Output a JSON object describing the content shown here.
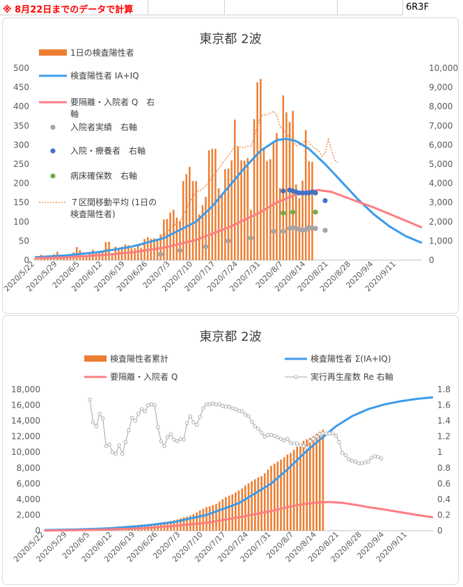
{
  "header": {
    "note": "※ 8月22日までのデータで計算",
    "code": "6R3F"
  },
  "colors": {
    "bar": "#ED7D31",
    "blue": "#3C9BEA",
    "pink": "#FF7C80",
    "gray": "#A5A5A5",
    "navy": "#4472C4",
    "green": "#70AD47",
    "dotted": "#ED7D31"
  },
  "chart_data": [
    {
      "type": "bar",
      "title": "東京都 2波",
      "legend": [
        {
          "label": "1日の検査陽性者",
          "kind": "bar",
          "color": "#ED7D31"
        },
        {
          "label": "検査陽性者 IA+IQ",
          "kind": "line",
          "color": "#3C9BEA"
        },
        {
          "label": "要隔離・入院者 Q　右",
          "label2": "軸",
          "kind": "line",
          "color": "#FF7C80"
        },
        {
          "label": "入院者実績　右軸",
          "kind": "marker",
          "color": "#A5A5A5"
        },
        {
          "label": "入院・療養者　右軸",
          "kind": "marker",
          "color": "#4472C4"
        },
        {
          "label": "病床確保数　右軸",
          "kind": "marker",
          "color": "#70AD47"
        },
        {
          "label": "７区間移動平均 (1日の",
          "label2": "検査陽性者)",
          "kind": "dotted",
          "color": "#ED7D31"
        }
      ],
      "x_ticks": [
        "2020/5/22",
        "2020/5/29",
        "2020/6/5",
        "2020/6/12",
        "2020/6/19",
        "2020/6/26",
        "2020/7/3",
        "2020/7/10",
        "2020/7/17",
        "2020/7/24",
        "2020/7/31",
        "2020/8/7",
        "2020/8/14",
        "2020/8/21",
        "2020/8/28",
        "2020/9/4",
        "2020/9/11"
      ],
      "x_range_days": [
        0,
        120
      ],
      "left_axis": {
        "ticks": [
          0,
          50,
          100,
          150,
          200,
          250,
          300,
          350,
          400,
          450,
          500
        ],
        "ylim": [
          0,
          500
        ]
      },
      "right_axis": {
        "ticks": [
          "0",
          "1,000",
          "2,000",
          "3,000",
          "4,000",
          "5,000",
          "6,000",
          "7,000",
          "8,000",
          "9,000",
          "10,000"
        ],
        "ylim": [
          0,
          10000
        ]
      },
      "daily_positive_start": "2020/5/22",
      "daily_positive": [
        3,
        2,
        14,
        8,
        10,
        11,
        15,
        22,
        11,
        12,
        11,
        16,
        20,
        34,
        26,
        13,
        12,
        18,
        27,
        22,
        24,
        25,
        47,
        48,
        16,
        35,
        29,
        35,
        41,
        39,
        31,
        31,
        39,
        32,
        55,
        60,
        55,
        57,
        54,
        67,
        106,
        107,
        124,
        131,
        111,
        102,
        206,
        224,
        243,
        206,
        206,
        119,
        143,
        165,
        286,
        290,
        290,
        187,
        168,
        237,
        238,
        260,
        366,
        295,
        260,
        259,
        266,
        131,
        367,
        463,
        472,
        292,
        258,
        263,
        309,
        331,
        188,
        429,
        385,
        360,
        389,
        197,
        161,
        207,
        339,
        258,
        256
      ],
      "moving_avg_7": [
        5,
        6,
        7,
        8,
        9,
        10,
        11,
        12,
        13,
        13,
        14,
        15,
        16,
        17,
        19,
        19,
        18,
        19,
        20,
        21,
        22,
        24,
        26,
        28,
        27,
        29,
        30,
        31,
        33,
        35,
        35,
        37,
        38,
        38,
        42,
        46,
        48,
        51,
        54,
        57,
        65,
        72,
        82,
        90,
        96,
        101,
        116,
        133,
        151,
        165,
        178,
        180,
        185,
        194,
        205,
        216,
        226,
        238,
        250,
        262,
        272,
        283,
        297,
        296,
        294,
        293,
        297,
        296,
        320,
        349,
        374,
        379,
        378,
        383,
        388,
        376,
        350,
        339,
        328,
        320,
        314,
        298,
        300,
        305,
        311,
        307,
        296,
        290,
        285,
        270,
        280,
        315,
        285,
        260,
        255
      ],
      "blue_model": [
        {
          "x": 0,
          "y": 150
        },
        {
          "x": 10,
          "y": 250
        },
        {
          "x": 20,
          "y": 420
        },
        {
          "x": 30,
          "y": 700
        },
        {
          "x": 40,
          "y": 1150
        },
        {
          "x": 50,
          "y": 2000
        },
        {
          "x": 55,
          "y": 2800
        },
        {
          "x": 60,
          "y": 3800
        },
        {
          "x": 65,
          "y": 4800
        },
        {
          "x": 70,
          "y": 5700
        },
        {
          "x": 75,
          "y": 6250
        },
        {
          "x": 78,
          "y": 6320
        },
        {
          "x": 81,
          "y": 6200
        },
        {
          "x": 85,
          "y": 5800
        },
        {
          "x": 90,
          "y": 5000
        },
        {
          "x": 95,
          "y": 4100
        },
        {
          "x": 100,
          "y": 3200
        },
        {
          "x": 105,
          "y": 2400
        },
        {
          "x": 110,
          "y": 1750
        },
        {
          "x": 115,
          "y": 1250
        },
        {
          "x": 120,
          "y": 900
        }
      ],
      "pink_model": [
        {
          "x": 0,
          "y": 100
        },
        {
          "x": 10,
          "y": 150
        },
        {
          "x": 20,
          "y": 250
        },
        {
          "x": 30,
          "y": 400
        },
        {
          "x": 40,
          "y": 650
        },
        {
          "x": 50,
          "y": 1050
        },
        {
          "x": 60,
          "y": 1700
        },
        {
          "x": 70,
          "y": 2500
        },
        {
          "x": 75,
          "y": 3000
        },
        {
          "x": 80,
          "y": 3350
        },
        {
          "x": 85,
          "y": 3600
        },
        {
          "x": 88,
          "y": 3650
        },
        {
          "x": 92,
          "y": 3550
        },
        {
          "x": 96,
          "y": 3300
        },
        {
          "x": 100,
          "y": 3050
        },
        {
          "x": 105,
          "y": 2750
        },
        {
          "x": 110,
          "y": 2400
        },
        {
          "x": 115,
          "y": 2050
        },
        {
          "x": 120,
          "y": 1700
        }
      ],
      "inpatients_actual": [
        {
          "x": 39,
          "y": 300
        },
        {
          "x": 45,
          "y": 500
        },
        {
          "x": 53,
          "y": 700
        },
        {
          "x": 60,
          "y": 1000
        },
        {
          "x": 67,
          "y": 1150
        },
        {
          "x": 74,
          "y": 1500
        },
        {
          "x": 77,
          "y": 1500
        },
        {
          "x": 79,
          "y": 1650
        },
        {
          "x": 80,
          "y": 1700
        },
        {
          "x": 81,
          "y": 1650
        },
        {
          "x": 82,
          "y": 1600
        },
        {
          "x": 83,
          "y": 1550
        },
        {
          "x": 84,
          "y": 1600
        },
        {
          "x": 85,
          "y": 1700
        },
        {
          "x": 86,
          "y": 1650
        },
        {
          "x": 87,
          "y": 1650
        },
        {
          "x": 90,
          "y": 1550
        }
      ],
      "inpatients_recuperating": [
        {
          "x": 77,
          "y": 3600
        },
        {
          "x": 79,
          "y": 3650
        },
        {
          "x": 80,
          "y": 3600
        },
        {
          "x": 81,
          "y": 3550
        },
        {
          "x": 82,
          "y": 3500
        },
        {
          "x": 83,
          "y": 3500
        },
        {
          "x": 84,
          "y": 3500
        },
        {
          "x": 85,
          "y": 3500
        },
        {
          "x": 86,
          "y": 3550
        },
        {
          "x": 87,
          "y": 3500
        },
        {
          "x": 90,
          "y": 3100
        }
      ],
      "beds_secured": [
        {
          "x": 77,
          "y": 2450
        },
        {
          "x": 80,
          "y": 2500
        },
        {
          "x": 87,
          "y": 2500
        }
      ]
    },
    {
      "type": "bar",
      "title": "東京都 2波",
      "legend": [
        {
          "label": "検査陽性者累計",
          "kind": "bar",
          "color": "#ED7D31"
        },
        {
          "label": "検査陽性者 Σ(IA+IQ)",
          "kind": "line",
          "color": "#3C9BEA"
        },
        {
          "label": "要隔離・入院者 Q",
          "kind": "line",
          "color": "#FF7C80"
        },
        {
          "label": "実行再生産数 Re 右軸",
          "kind": "marker-line",
          "color": "#A5A5A5"
        }
      ],
      "x_ticks": [
        "2020/5/22",
        "2020/5/29",
        "2020/6/5",
        "2020/6/12",
        "2020/6/19",
        "2020/6/26",
        "2020/7/3",
        "2020/7/10",
        "2020/7/17",
        "2020/7/24",
        "2020/7/31",
        "2020/8/7",
        "2020/8/14",
        "2020/8/21",
        "2020/8/28",
        "2020/9/4",
        "2020/9/11"
      ],
      "x_range_days": [
        0,
        120
      ],
      "left_axis": {
        "ticks": [
          "0",
          "2,000",
          "4,000",
          "6,000",
          "8,000",
          "10,000",
          "12,000",
          "14,000",
          "16,000",
          "18,000"
        ],
        "ylim": [
          0,
          18000
        ]
      },
      "right_axis": {
        "ticks": [
          "0",
          "0.2",
          "0.4",
          "0.6",
          "0.8",
          "1",
          "1.2",
          "1.4",
          "1.6",
          "1.8"
        ],
        "ylim": [
          0,
          1.8
        ]
      },
      "cumulative_start_value": 100,
      "cumulative_blue": [
        {
          "x": 0,
          "y": 80
        },
        {
          "x": 10,
          "y": 150
        },
        {
          "x": 20,
          "y": 300
        },
        {
          "x": 30,
          "y": 600
        },
        {
          "x": 40,
          "y": 1100
        },
        {
          "x": 50,
          "y": 2000
        },
        {
          "x": 60,
          "y": 3500
        },
        {
          "x": 70,
          "y": 6000
        },
        {
          "x": 75,
          "y": 7800
        },
        {
          "x": 80,
          "y": 9800
        },
        {
          "x": 85,
          "y": 11600
        },
        {
          "x": 90,
          "y": 13300
        },
        {
          "x": 95,
          "y": 14600
        },
        {
          "x": 100,
          "y": 15500
        },
        {
          "x": 105,
          "y": 16100
        },
        {
          "x": 110,
          "y": 16500
        },
        {
          "x": 115,
          "y": 16800
        },
        {
          "x": 120,
          "y": 17000
        }
      ],
      "q_pink": [
        {
          "x": 0,
          "y": 0
        },
        {
          "x": 10,
          "y": 60
        },
        {
          "x": 20,
          "y": 150
        },
        {
          "x": 30,
          "y": 300
        },
        {
          "x": 40,
          "y": 600
        },
        {
          "x": 50,
          "y": 1000
        },
        {
          "x": 60,
          "y": 1700
        },
        {
          "x": 70,
          "y": 2500
        },
        {
          "x": 75,
          "y": 3000
        },
        {
          "x": 80,
          "y": 3400
        },
        {
          "x": 85,
          "y": 3600
        },
        {
          "x": 88,
          "y": 3650
        },
        {
          "x": 92,
          "y": 3550
        },
        {
          "x": 96,
          "y": 3300
        },
        {
          "x": 100,
          "y": 3000
        },
        {
          "x": 105,
          "y": 2700
        },
        {
          "x": 110,
          "y": 2350
        },
        {
          "x": 115,
          "y": 2000
        },
        {
          "x": 120,
          "y": 1700
        }
      ],
      "re_start_day": 14,
      "re_values": [
        1.67,
        1.38,
        1.33,
        1.49,
        1.43,
        1.08,
        1.1,
        1.0,
        0.98,
        1.09,
        0.98,
        1.13,
        1.28,
        1.44,
        1.4,
        1.49,
        1.55,
        1.52,
        1.6,
        1.61,
        1.6,
        1.32,
        1.14,
        1.08,
        1.19,
        1.23,
        1.16,
        1.14,
        1.17,
        1.16,
        1.37,
        1.46,
        1.38,
        1.35,
        1.45,
        1.56,
        1.61,
        1.61,
        1.62,
        1.61,
        1.61,
        1.59,
        1.58,
        1.58,
        1.56,
        1.55,
        1.53,
        1.52,
        1.48,
        1.46,
        1.39,
        1.33,
        1.3,
        1.25,
        1.2,
        1.22,
        1.22,
        1.21,
        1.19,
        1.17,
        1.15,
        1.17,
        1.12,
        1.11,
        1.11,
        1.09,
        1.08,
        1.06,
        1.14,
        1.17,
        1.2,
        1.23,
        1.24,
        1.24,
        1.24,
        1.24,
        1.21,
        1.13,
        0.99,
        0.96,
        0.91,
        0.89,
        0.88,
        0.86,
        0.86,
        0.87,
        0.88,
        0.93,
        0.95,
        0.94,
        0.92
      ]
    }
  ]
}
